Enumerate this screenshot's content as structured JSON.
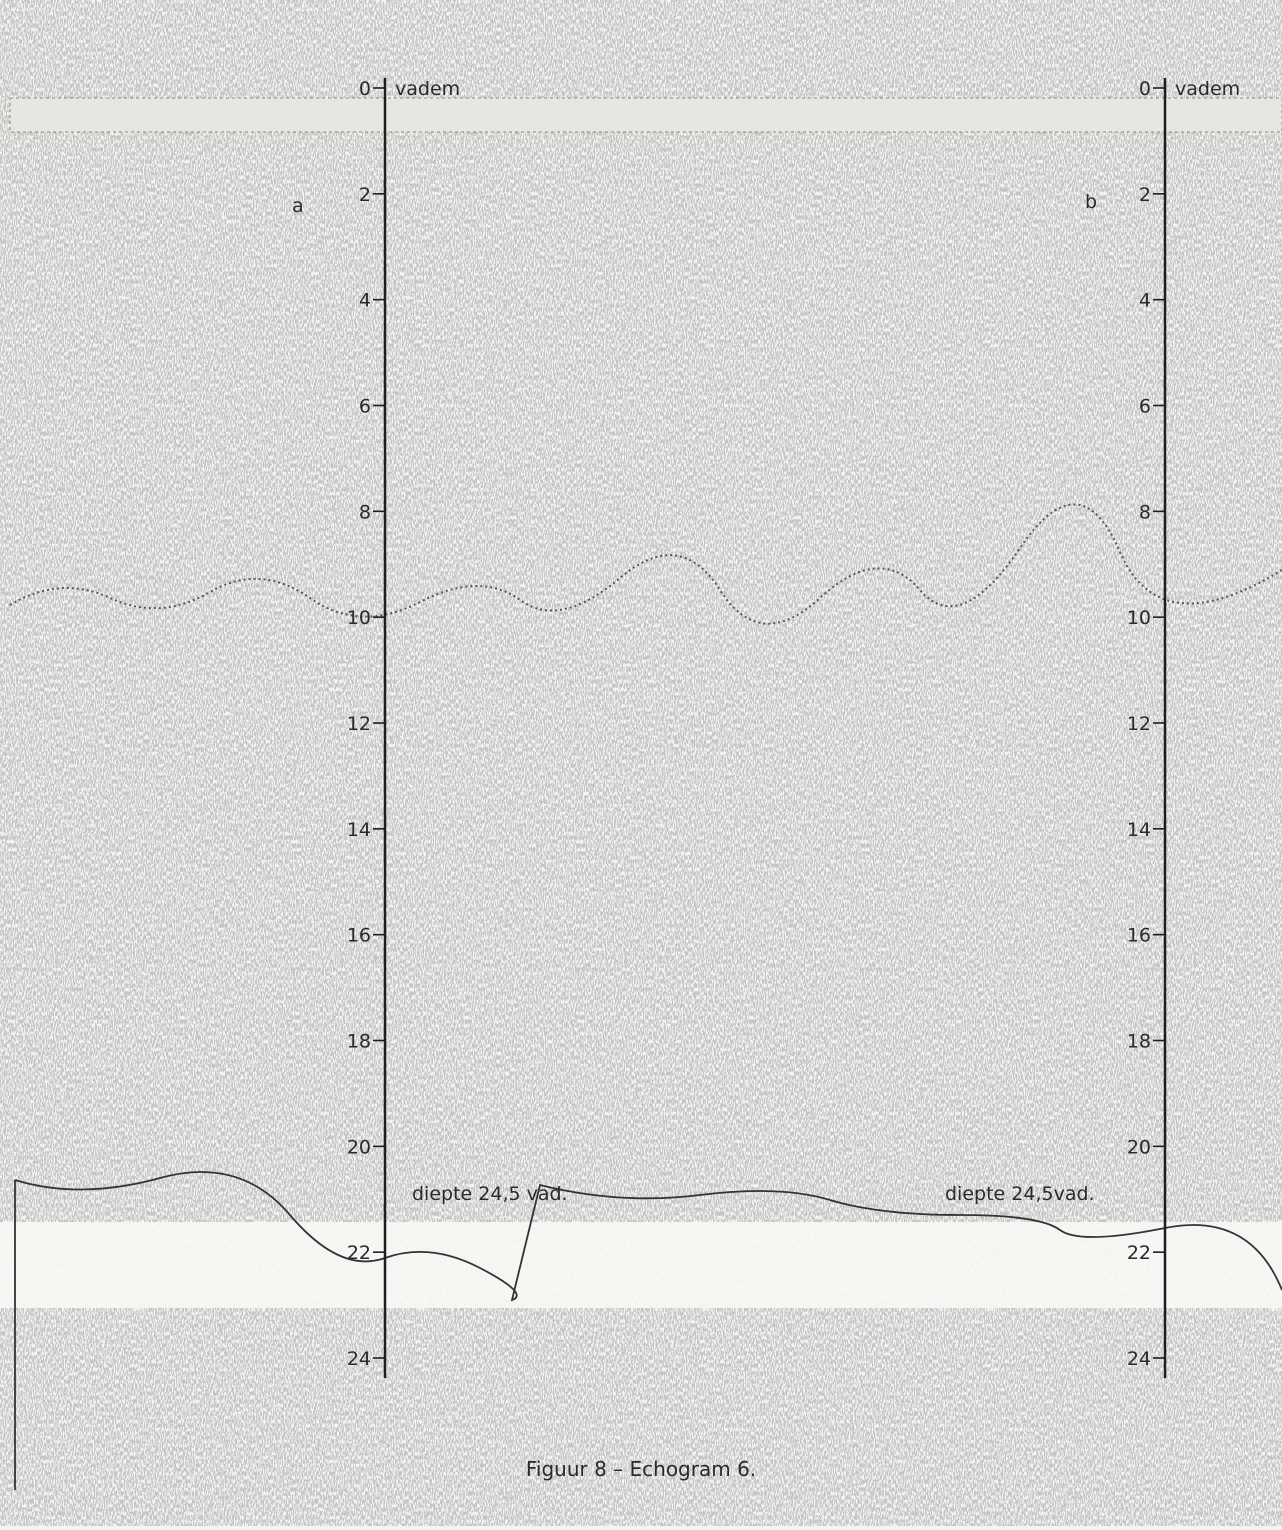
{
  "scales": [
    {
      "unit": "vadem",
      "ticks": [
        0,
        2,
        4,
        6,
        8,
        10,
        12,
        14,
        16,
        18,
        20,
        22,
        24
      ]
    },
    {
      "unit": "vadem",
      "ticks": [
        0,
        2,
        4,
        6,
        8,
        10,
        12,
        14,
        16,
        18,
        20,
        22,
        24
      ]
    }
  ],
  "panel_labels": [
    "a",
    "b"
  ],
  "annotations": [
    "diepte 24,5 vad.",
    "diepte 24,5vad."
  ],
  "caption": "Figuur 8 – Echogram 6."
}
